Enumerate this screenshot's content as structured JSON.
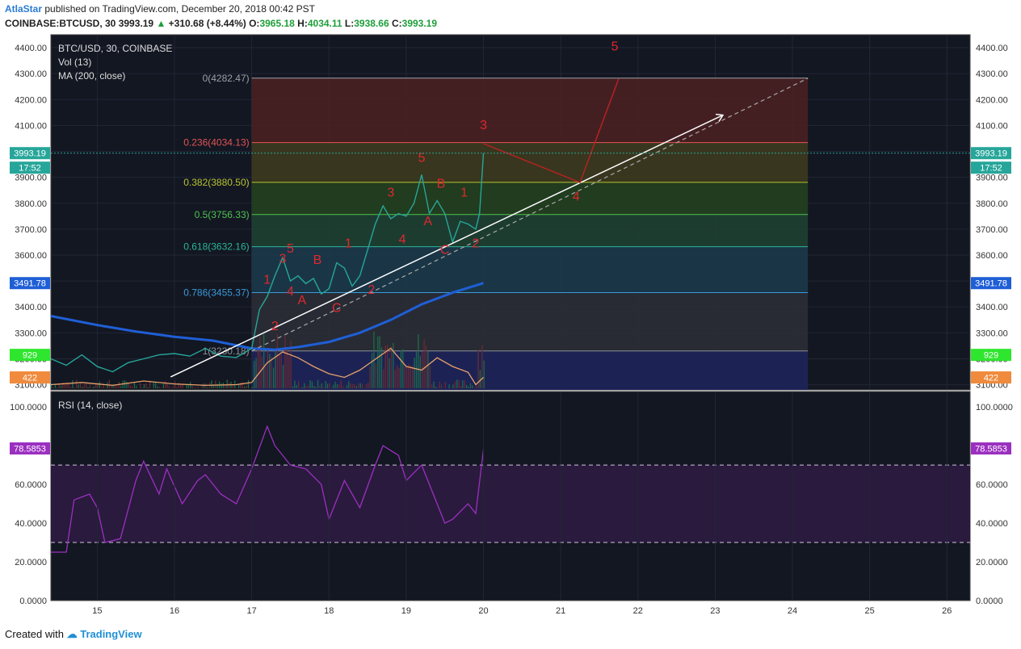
{
  "header": {
    "author": "AtlaStar",
    "published_text": "published on TradingView.com, December 20, 2018 00:42 PST",
    "symbol": "COINBASE:BTCUSD, 30",
    "last": "3993.19",
    "change": "+310.68 (+8.44%)",
    "o_label": "O:",
    "o_value": "3965.18",
    "h_label": "H:",
    "h_value": "4034.11",
    "l_label": "L:",
    "l_value": "3938.66",
    "c_label": "C:",
    "c_value": "3993.19"
  },
  "legend": {
    "symbol": "BTC/USD, 30, COINBASE",
    "vol": "Vol (13)",
    "ma": "MA (200, close)",
    "rsi": "RSI (14, close)"
  },
  "footer": {
    "created_with": "Created with",
    "brand": "TradingView"
  },
  "colors": {
    "price_line": "#26a69a",
    "ma": "#1f5fd6",
    "ma_badge": "#1f5fd6",
    "rsi": "#9b30c0",
    "wave_labels": "#e0282e",
    "vol_badge": "#2ee62e",
    "vol_ma_badge": "#f08a3c"
  },
  "chart_data": {
    "type": "line",
    "price_axis": {
      "ylim": [
        3080,
        4450
      ],
      "ticks": [
        "3100.00",
        "3200.00",
        "3300.00",
        "3400.00",
        "3500.00",
        "3600.00",
        "3700.00",
        "3800.00",
        "3900.00",
        "4000.00",
        "4100.00",
        "4200.00",
        "4300.00",
        "4400.00"
      ]
    },
    "time_axis": {
      "xlim": [
        14.4,
        26.3
      ],
      "ticks": [
        "15",
        "16",
        "17",
        "18",
        "19",
        "20",
        "21",
        "22",
        "23",
        "24",
        "25",
        "26"
      ]
    },
    "badges": {
      "last_price": "3993.19",
      "countdown": "17:52",
      "ma_value": "3491.78",
      "volume": "929",
      "volume_ma": "422",
      "rsi_value": "78.5853"
    },
    "fib_levels": [
      {
        "label": "0(4282.47)",
        "value": 4282.47,
        "color": "#9aa0a6"
      },
      {
        "label": "0.236(4034.13)",
        "value": 4034.13,
        "color": "#e35454"
      },
      {
        "label": "0.382(3880.50)",
        "value": 3880.5,
        "color": "#b8c430"
      },
      {
        "label": "0.5(3756.33)",
        "value": 3756.33,
        "color": "#4fc24f"
      },
      {
        "label": "0.618(3632.16)",
        "value": 3632.16,
        "color": "#2ab598"
      },
      {
        "label": "0.786(3455.37)",
        "value": 3455.37,
        "color": "#3a9ad9"
      },
      {
        "label": "1(3230.18)",
        "value": 3230.18,
        "color": "#8c8f94"
      }
    ],
    "fib_x": [
      17.0,
      24.2
    ],
    "price_series": {
      "x": [
        14.4,
        14.6,
        14.8,
        15.0,
        15.2,
        15.4,
        15.6,
        15.8,
        16.0,
        16.2,
        16.4,
        16.6,
        16.8,
        17.0,
        17.1,
        17.2,
        17.3,
        17.4,
        17.5,
        17.6,
        17.7,
        17.8,
        17.9,
        18.0,
        18.1,
        18.2,
        18.3,
        18.4,
        18.5,
        18.6,
        18.7,
        18.8,
        18.9,
        19.0,
        19.1,
        19.2,
        19.3,
        19.4,
        19.5,
        19.6,
        19.7,
        19.8,
        19.9,
        19.95,
        20.0
      ],
      "y": [
        3200,
        3175,
        3215,
        3170,
        3150,
        3185,
        3200,
        3215,
        3220,
        3210,
        3240,
        3210,
        3205,
        3240,
        3390,
        3440,
        3520,
        3590,
        3500,
        3520,
        3490,
        3510,
        3450,
        3470,
        3570,
        3550,
        3480,
        3520,
        3620,
        3720,
        3790,
        3740,
        3760,
        3750,
        3800,
        3910,
        3760,
        3810,
        3760,
        3650,
        3730,
        3720,
        3700,
        3760,
        3993
      ]
    },
    "ma_series": {
      "x": [
        14.4,
        15.0,
        15.5,
        16.0,
        16.5,
        17.0,
        17.3,
        17.6,
        18.0,
        18.4,
        18.8,
        19.2,
        19.6,
        20.0
      ],
      "y": [
        3365,
        3330,
        3305,
        3285,
        3270,
        3240,
        3235,
        3245,
        3265,
        3300,
        3350,
        3410,
        3455,
        3492
      ]
    },
    "volume_ma_series": {
      "x": [
        14.4,
        14.8,
        15.2,
        15.6,
        16.0,
        16.4,
        16.8,
        17.0,
        17.2,
        17.4,
        17.6,
        17.8,
        18.0,
        18.2,
        18.4,
        18.6,
        18.8,
        19.0,
        19.2,
        19.4,
        19.6,
        19.8,
        19.9,
        20.0
      ],
      "y": [
        0.05,
        0.08,
        0.04,
        0.1,
        0.06,
        0.04,
        0.05,
        0.08,
        0.35,
        0.5,
        0.42,
        0.3,
        0.2,
        0.15,
        0.25,
        0.4,
        0.55,
        0.3,
        0.25,
        0.42,
        0.3,
        0.22,
        0.05,
        0.15
      ]
    },
    "rsi_axis": {
      "ylim": [
        0,
        108
      ],
      "ticks": [
        "0.0000",
        "20.0000",
        "40.0000",
        "60.0000",
        "80.0000",
        "100.0000"
      ],
      "band": [
        30,
        70
      ]
    },
    "rsi_series": {
      "x": [
        14.4,
        14.6,
        14.7,
        14.9,
        15.0,
        15.1,
        15.3,
        15.5,
        15.6,
        15.8,
        15.9,
        16.1,
        16.3,
        16.4,
        16.6,
        16.8,
        17.0,
        17.2,
        17.3,
        17.5,
        17.7,
        17.9,
        18.0,
        18.2,
        18.4,
        18.6,
        18.7,
        18.9,
        19.0,
        19.2,
        19.3,
        19.5,
        19.6,
        19.8,
        19.9,
        20.0
      ],
      "y": [
        25,
        25,
        52,
        55,
        48,
        30,
        32,
        62,
        72,
        55,
        68,
        50,
        62,
        65,
        55,
        50,
        68,
        90,
        80,
        70,
        68,
        60,
        42,
        62,
        48,
        70,
        80,
        75,
        62,
        70,
        60,
        40,
        42,
        50,
        45,
        78
      ]
    },
    "wave_labels": [
      {
        "text": "1",
        "x": 17.2,
        "y": 3490
      },
      {
        "text": "2",
        "x": 17.3,
        "y": 3310
      },
      {
        "text": "3",
        "x": 17.4,
        "y": 3570
      },
      {
        "text": "4",
        "x": 17.5,
        "y": 3445
      },
      {
        "text": "5",
        "x": 17.5,
        "y": 3610
      },
      {
        "text": "A",
        "x": 17.65,
        "y": 3410
      },
      {
        "text": "B",
        "x": 17.85,
        "y": 3565
      },
      {
        "text": "C",
        "x": 18.1,
        "y": 3380
      },
      {
        "text": "1",
        "x": 18.25,
        "y": 3630
      },
      {
        "text": "2",
        "x": 18.55,
        "y": 3450
      },
      {
        "text": "3",
        "x": 18.8,
        "y": 3825
      },
      {
        "text": "4",
        "x": 18.95,
        "y": 3645
      },
      {
        "text": "5",
        "x": 19.2,
        "y": 3960
      },
      {
        "text": "A",
        "x": 19.28,
        "y": 3715
      },
      {
        "text": "B",
        "x": 19.45,
        "y": 3860
      },
      {
        "text": "C",
        "x": 19.5,
        "y": 3605
      },
      {
        "text": "1",
        "x": 19.75,
        "y": 3825
      },
      {
        "text": "2",
        "x": 19.9,
        "y": 3630
      },
      {
        "text": "3",
        "x": 20.0,
        "y": 4085
      },
      {
        "text": "4",
        "x": 21.2,
        "y": 3810
      },
      {
        "text": "5",
        "x": 21.7,
        "y": 4390
      }
    ]
  }
}
